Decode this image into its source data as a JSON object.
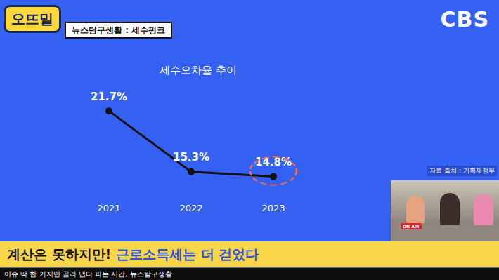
{
  "chart_data": {
    "type": "line",
    "title": "세수오차율 추이",
    "categories": [
      "2021",
      "2022",
      "2023"
    ],
    "values": [
      21.7,
      15.3,
      14.8
    ],
    "value_labels": [
      "21.7%",
      "15.3%",
      "14.8%"
    ],
    "color": "#111111",
    "marker": "circle",
    "ylim": [
      13,
      24
    ],
    "yticks": [
      13,
      24
    ],
    "grid": false,
    "data_labels": true,
    "tick_labels": "x"
  },
  "header": {
    "logo": "오뜨밀",
    "segment": "뉴스탐구생활 : 세수펑크",
    "channel": "CBS"
  },
  "source": "자료 출처 : 기획재정부",
  "inset": {
    "sign": "ON AIR"
  },
  "caption": {
    "lead": "계산은 못하지만!",
    "highlight": "근로소득세는 더 걷었다"
  },
  "ticker": "이슈 딱 한 가지만 골라 냅다 파는 시간, 뉴스탐구생활"
}
